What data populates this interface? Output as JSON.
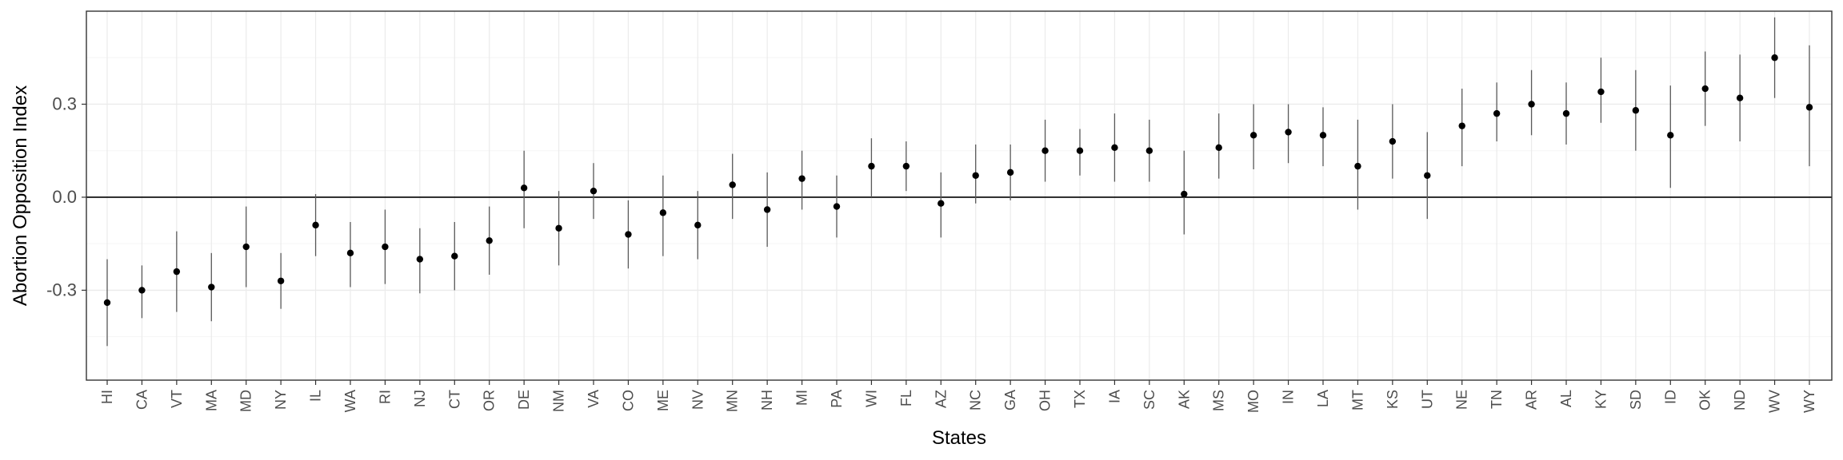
{
  "chart_data": {
    "type": "scatter",
    "xlabel": "States",
    "ylabel": "Abortion Opposition Index",
    "ylim": [
      -0.59,
      0.6
    ],
    "yticks": [
      -0.3,
      0.0,
      0.3
    ],
    "ytick_labels": [
      "-0.3",
      "0.0",
      "0.3"
    ],
    "reference_line": 0.0,
    "grid": true,
    "series": [
      {
        "style": "point-range",
        "points": [
          {
            "state": "HI",
            "est": -0.34,
            "lo": -0.48,
            "hi": -0.2
          },
          {
            "state": "CA",
            "est": -0.3,
            "lo": -0.39,
            "hi": -0.22
          },
          {
            "state": "VT",
            "est": -0.24,
            "lo": -0.37,
            "hi": -0.11
          },
          {
            "state": "MA",
            "est": -0.29,
            "lo": -0.4,
            "hi": -0.18
          },
          {
            "state": "MD",
            "est": -0.16,
            "lo": -0.29,
            "hi": -0.03
          },
          {
            "state": "NY",
            "est": -0.27,
            "lo": -0.36,
            "hi": -0.18
          },
          {
            "state": "IL",
            "est": -0.09,
            "lo": -0.19,
            "hi": 0.01
          },
          {
            "state": "WA",
            "est": -0.18,
            "lo": -0.29,
            "hi": -0.08
          },
          {
            "state": "RI",
            "est": -0.16,
            "lo": -0.28,
            "hi": -0.04
          },
          {
            "state": "NJ",
            "est": -0.2,
            "lo": -0.31,
            "hi": -0.1
          },
          {
            "state": "CT",
            "est": -0.19,
            "lo": -0.3,
            "hi": -0.08
          },
          {
            "state": "OR",
            "est": -0.14,
            "lo": -0.25,
            "hi": -0.03
          },
          {
            "state": "DE",
            "est": 0.03,
            "lo": -0.1,
            "hi": 0.15
          },
          {
            "state": "NM",
            "est": -0.1,
            "lo": -0.22,
            "hi": 0.02
          },
          {
            "state": "VA",
            "est": 0.02,
            "lo": -0.07,
            "hi": 0.11
          },
          {
            "state": "CO",
            "est": -0.12,
            "lo": -0.23,
            "hi": -0.01
          },
          {
            "state": "ME",
            "est": -0.05,
            "lo": -0.19,
            "hi": 0.07
          },
          {
            "state": "NV",
            "est": -0.09,
            "lo": -0.2,
            "hi": 0.02
          },
          {
            "state": "MN",
            "est": 0.04,
            "lo": -0.07,
            "hi": 0.14
          },
          {
            "state": "NH",
            "est": -0.04,
            "lo": -0.16,
            "hi": 0.08
          },
          {
            "state": "MI",
            "est": 0.06,
            "lo": -0.04,
            "hi": 0.15
          },
          {
            "state": "PA",
            "est": -0.03,
            "lo": -0.13,
            "hi": 0.07
          },
          {
            "state": "WI",
            "est": 0.1,
            "lo": 0.0,
            "hi": 0.19
          },
          {
            "state": "FL",
            "est": 0.1,
            "lo": 0.02,
            "hi": 0.18
          },
          {
            "state": "AZ",
            "est": -0.02,
            "lo": -0.13,
            "hi": 0.08
          },
          {
            "state": "NC",
            "est": 0.07,
            "lo": -0.02,
            "hi": 0.17
          },
          {
            "state": "GA",
            "est": 0.08,
            "lo": -0.01,
            "hi": 0.17
          },
          {
            "state": "OH",
            "est": 0.15,
            "lo": 0.05,
            "hi": 0.25
          },
          {
            "state": "TX",
            "est": 0.15,
            "lo": 0.07,
            "hi": 0.22
          },
          {
            "state": "IA",
            "est": 0.16,
            "lo": 0.05,
            "hi": 0.27
          },
          {
            "state": "SC",
            "est": 0.15,
            "lo": 0.05,
            "hi": 0.25
          },
          {
            "state": "AK",
            "est": 0.01,
            "lo": -0.12,
            "hi": 0.15
          },
          {
            "state": "MS",
            "est": 0.16,
            "lo": 0.06,
            "hi": 0.27
          },
          {
            "state": "MO",
            "est": 0.2,
            "lo": 0.09,
            "hi": 0.3
          },
          {
            "state": "IN",
            "est": 0.21,
            "lo": 0.11,
            "hi": 0.3
          },
          {
            "state": "LA",
            "est": 0.2,
            "lo": 0.1,
            "hi": 0.29
          },
          {
            "state": "MT",
            "est": 0.1,
            "lo": -0.04,
            "hi": 0.25
          },
          {
            "state": "KS",
            "est": 0.18,
            "lo": 0.06,
            "hi": 0.3
          },
          {
            "state": "UT",
            "est": 0.07,
            "lo": -0.07,
            "hi": 0.21
          },
          {
            "state": "NE",
            "est": 0.23,
            "lo": 0.1,
            "hi": 0.35
          },
          {
            "state": "TN",
            "est": 0.27,
            "lo": 0.18,
            "hi": 0.37
          },
          {
            "state": "AR",
            "est": 0.3,
            "lo": 0.2,
            "hi": 0.41
          },
          {
            "state": "AL",
            "est": 0.27,
            "lo": 0.17,
            "hi": 0.37
          },
          {
            "state": "KY",
            "est": 0.34,
            "lo": 0.24,
            "hi": 0.45
          },
          {
            "state": "SD",
            "est": 0.28,
            "lo": 0.15,
            "hi": 0.41
          },
          {
            "state": "ID",
            "est": 0.2,
            "lo": 0.03,
            "hi": 0.36
          },
          {
            "state": "OK",
            "est": 0.35,
            "lo": 0.23,
            "hi": 0.47
          },
          {
            "state": "ND",
            "est": 0.32,
            "lo": 0.18,
            "hi": 0.46
          },
          {
            "state": "WV",
            "est": 0.45,
            "lo": 0.32,
            "hi": 0.58
          },
          {
            "state": "WY",
            "est": 0.29,
            "lo": 0.1,
            "hi": 0.49
          }
        ]
      }
    ],
    "colors": {
      "point": "#000000",
      "errorbar": "#595959",
      "grid_major": "#ebebeb",
      "grid_minor": "#f5f5f5",
      "panel_border": "#333333",
      "tick_label": "#4d4d4d"
    }
  }
}
